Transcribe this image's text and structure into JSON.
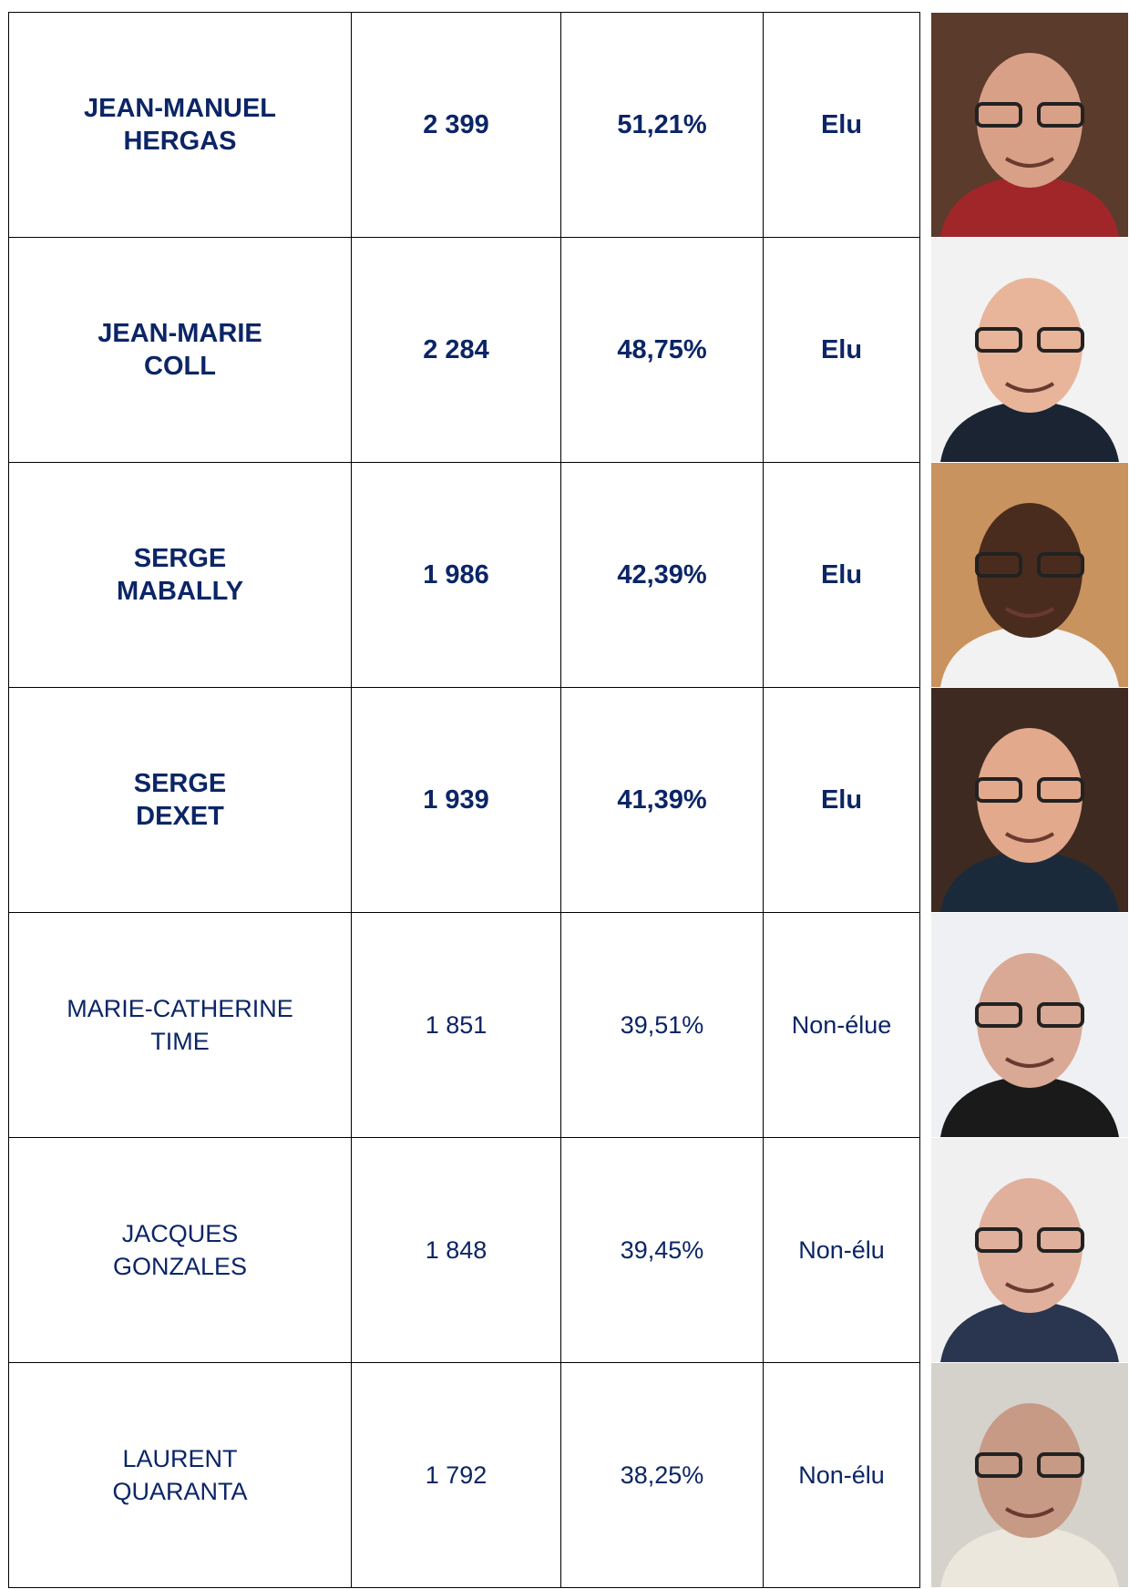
{
  "table": {
    "rows": [
      {
        "name": [
          "JEAN-MANUEL",
          "HERGAS"
        ],
        "votes": "2 399",
        "percent": "51,21%",
        "status": "Elu",
        "bold": true
      },
      {
        "name": [
          "JEAN-MARIE",
          "COLL"
        ],
        "votes": "2 284",
        "percent": "48,75%",
        "status": "Elu",
        "bold": true
      },
      {
        "name": [
          "SERGE",
          "MABALLY"
        ],
        "votes": "1 986",
        "percent": "42,39%",
        "status": "Elu",
        "bold": true
      },
      {
        "name": [
          "SERGE",
          "DEXET"
        ],
        "votes": "1 939",
        "percent": "41,39%",
        "status": "Elu",
        "bold": true
      },
      {
        "name": [
          "MARIE-CATHERINE",
          "TIME"
        ],
        "votes": "1 851",
        "percent": "39,51%",
        "status": "Non-élue",
        "bold": false
      },
      {
        "name": [
          "JACQUES",
          "GONZALES"
        ],
        "votes": "1 848",
        "percent": "39,45%",
        "status": "Non-élu",
        "bold": false
      },
      {
        "name": [
          "LAURENT",
          "QUARANTA"
        ],
        "votes": "1 792",
        "percent": "38,25%",
        "status": "Non-élu",
        "bold": false
      }
    ]
  }
}
